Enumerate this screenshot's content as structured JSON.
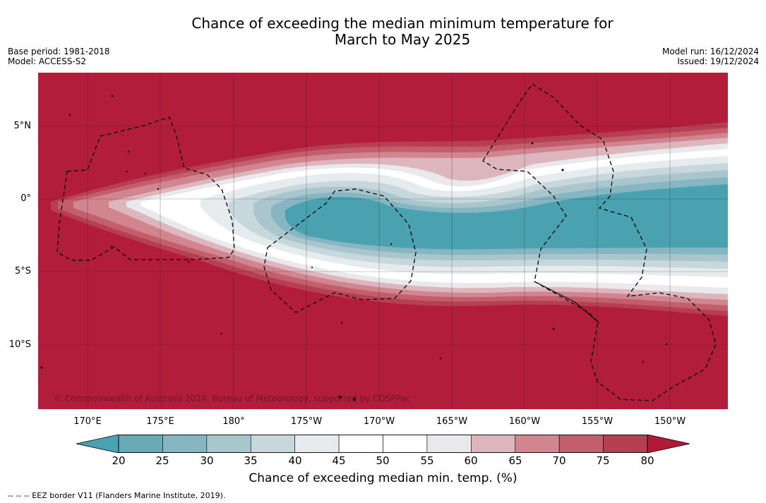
{
  "title": {
    "line1": "Chance of exceeding the median minimum temperature for",
    "line2": "March to May 2025"
  },
  "meta_left": {
    "base_period": "Base period: 1981-2018",
    "model": "Model: ACCESS-S2"
  },
  "meta_right": {
    "model_run": "Model run: 16/12/2024",
    "issued": "Issued: 19/12/2024"
  },
  "map": {
    "lat_labels": [
      "5°N",
      "0°",
      "5°S",
      "10°S"
    ],
    "lon_labels": [
      "170°E",
      "175°E",
      "180°",
      "175°W",
      "170°W",
      "165°W",
      "160°W",
      "155°W",
      "150°W"
    ],
    "copyright": "© Commonwealth of Australia 2024, Bureau of Meteorology, supported by COSPPac"
  },
  "colorbar": {
    "ticks": [
      "20",
      "25",
      "30",
      "35",
      "40",
      "45",
      "50",
      "55",
      "60",
      "65",
      "70",
      "75",
      "80"
    ],
    "colors": [
      "#6aa9b6",
      "#86b6c2",
      "#a9c6cc",
      "#c8d7dc",
      "#e6ecee",
      "#ffffff",
      "#ffffff",
      "#e9e9ec",
      "#ddb5bd",
      "#d0858f",
      "#c35e6c",
      "#b73f52"
    ],
    "below_color": "#4aa1b0",
    "above_color": "#b01a37",
    "title": "Chance of exceeding median min. temp. (%)"
  },
  "legend_note": "--  --  -- EEZ border V11 (Flanders Marine Institute, 2019)."
}
